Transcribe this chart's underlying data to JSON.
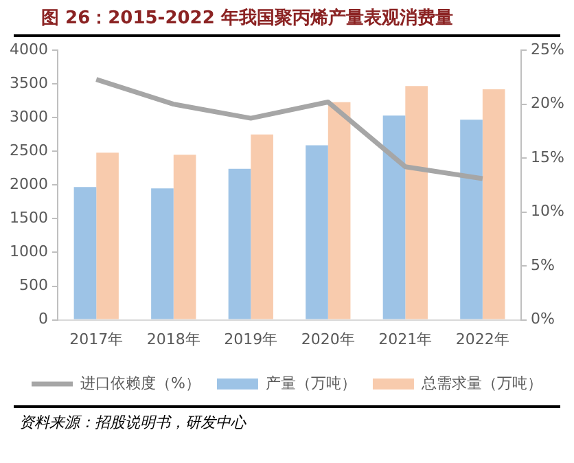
{
  "chart_data": {
    "type": "bar",
    "title": "图 26：2015-2022 年我国聚丙烯产量表观消费量",
    "categories": [
      "2017年",
      "2018年",
      "2019年",
      "2020年",
      "2021年",
      "2022年"
    ],
    "series": [
      {
        "name": "产量（万吨）",
        "color": "#9dc3e6",
        "values": [
          1970,
          1950,
          2240,
          2590,
          3030,
          2970
        ]
      },
      {
        "name": "总需求量（万吨）",
        "color": "#f8cbad",
        "values": [
          2480,
          2450,
          2750,
          3230,
          3470,
          3420
        ]
      },
      {
        "name": "进口依赖度（%）",
        "type": "line",
        "axis": "y2",
        "color": "#a6a6a6",
        "values": [
          22.3,
          20.0,
          18.7,
          20.2,
          14.2,
          13.1
        ]
      }
    ],
    "ylim": [
      0,
      4000
    ],
    "yticks": [
      0,
      500,
      1000,
      1500,
      2000,
      2500,
      3000,
      3500,
      4000
    ],
    "y2lim": [
      0,
      25
    ],
    "y2ticks": [
      {
        "value": 0,
        "label": "0%"
      },
      {
        "value": 5,
        "label": "5%"
      },
      {
        "value": 10,
        "label": "10%"
      },
      {
        "value": 15,
        "label": "15%"
      },
      {
        "value": 20,
        "label": "20%"
      },
      {
        "value": 25,
        "label": "25%"
      }
    ],
    "grid": false,
    "legend": "bottom",
    "marker": "none",
    "annotations": [
      "资料来源：招股说明书，研发中心"
    ]
  }
}
